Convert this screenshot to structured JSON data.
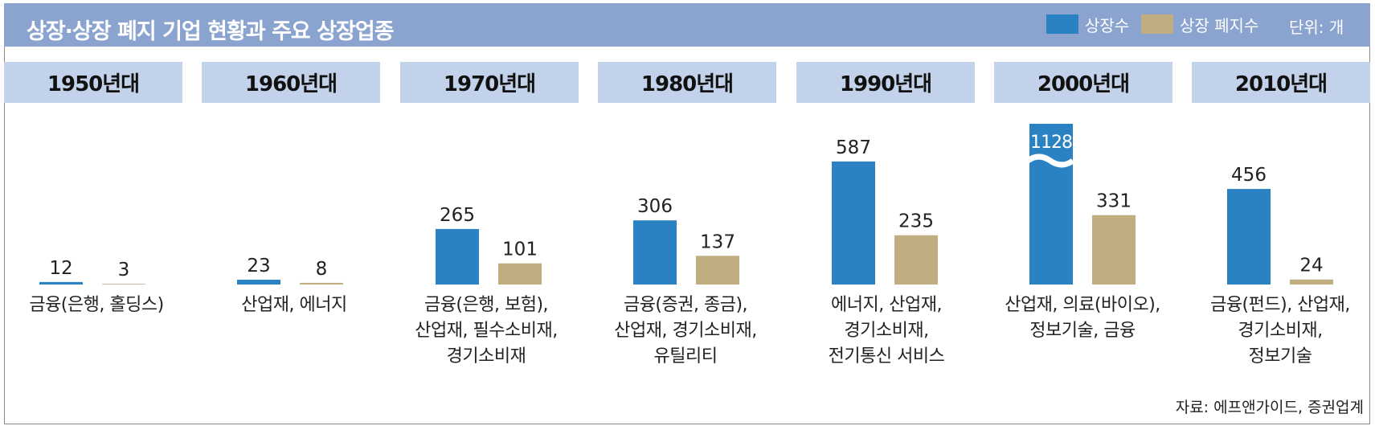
{
  "title": "상장·상장 폐지 기업 현황과 주요 상장업종",
  "legend": [
    {
      "label": "상장수",
      "color": "#2b82c3"
    },
    {
      "label": "상장 폐지수",
      "color": "#c1ae80"
    }
  ],
  "unit": "단위: 개",
  "source": "자료: 에프앤가이드, 증권업계",
  "chart_data": {
    "type": "bar",
    "categories": [
      "1950년대",
      "1960년대",
      "1970년대",
      "1980년대",
      "1990년대",
      "2000년대",
      "2010년대"
    ],
    "series": [
      {
        "name": "상장수",
        "values": [
          12,
          23,
          265,
          306,
          587,
          1128,
          456
        ]
      },
      {
        "name": "상장 폐지수",
        "values": [
          3,
          8,
          101,
          137,
          235,
          331,
          24
        ]
      }
    ],
    "axis_break": {
      "category": "2000년대",
      "series": "상장수"
    },
    "industries": [
      "금융(은행, 홀딩스)",
      "산업재, 에너지",
      "금융(은행, 보험),\n산업재, 필수소비재,\n경기소비재",
      "금융(증권, 종금),\n산업재, 경기소비재,\n유틸리티",
      "에너지, 산업재,\n경기소비재,\n전기통신 서비스",
      "산업재, 의료(바이오),\n정보기술, 금융",
      "금융(펀드), 산업재,\n경기소비재,\n정보기술"
    ]
  }
}
